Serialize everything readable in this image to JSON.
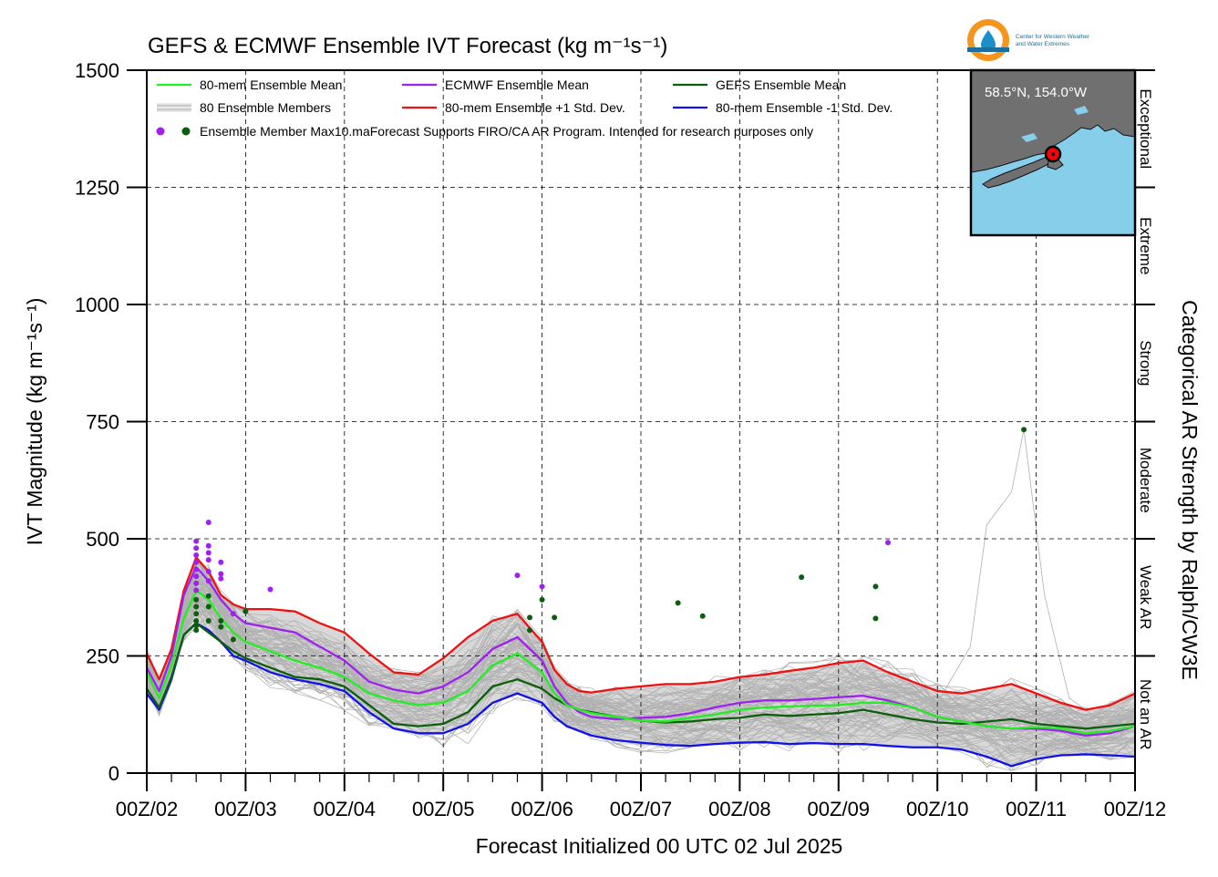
{
  "chart_data": {
    "type": "line",
    "title": "GEFS & ECMWF Ensemble IVT Forecast (kg m⁻¹s⁻¹)",
    "xlabel": "Forecast Initialized 00 UTC 02 Jul 2025",
    "ylabel": "IVT Magnitude (kg m⁻¹s⁻¹)",
    "right_label": "Categorical AR Strength by Ralph/CW3E",
    "xlim": [
      0,
      240
    ],
    "ylim": [
      0,
      1500
    ],
    "grid": true,
    "legend_placement": "top-left",
    "x_tick_values": [
      0,
      24,
      48,
      72,
      96,
      120,
      144,
      168,
      192,
      216,
      240
    ],
    "x_tick_labels": [
      "00Z/02",
      "00Z/03",
      "00Z/04",
      "00Z/05",
      "00Z/06",
      "00Z/07",
      "00Z/08",
      "00Z/09",
      "00Z/10",
      "00Z/11",
      "00Z/12"
    ],
    "y_ticks": [
      0,
      250,
      500,
      750,
      1000,
      1250,
      1500
    ],
    "categories": [
      {
        "name": "Not an AR",
        "range": [
          0,
          250
        ]
      },
      {
        "name": "Weak AR",
        "range": [
          250,
          500
        ]
      },
      {
        "name": "Moderate",
        "range": [
          500,
          750
        ]
      },
      {
        "name": "Strong",
        "range": [
          750,
          1000
        ]
      },
      {
        "name": "Extreme",
        "range": [
          1000,
          1250
        ]
      },
      {
        "name": "Exceptional",
        "range": [
          1250,
          1500
        ]
      }
    ],
    "legend": [
      {
        "label": "80-mem Ensemble Mean",
        "color": "#22ee22",
        "kind": "line"
      },
      {
        "label": "ECMWF Ensemble Mean",
        "color": "#a020f0",
        "kind": "line"
      },
      {
        "label": "GEFS Ensemble Mean",
        "color": "#0b5e0b",
        "kind": "line"
      },
      {
        "label": "80 Ensemble Members",
        "color": "#aaaaaa",
        "kind": "lines"
      },
      {
        "label": "80-mem Ensemble +1 Std. Dev.",
        "color": "#ee1111",
        "kind": "line"
      },
      {
        "label": "80-mem Ensemble -1 Std. Dev.",
        "color": "#1111ee",
        "kind": "line"
      },
      {
        "label": "Ensemble Member Max10.maForecast Supports FIRO/CA AR Program. Intended for research purposes only",
        "color": "#a020f0",
        "color2": "#0b5e0b",
        "kind": "dots"
      }
    ],
    "x": [
      0,
      3,
      6,
      9,
      12,
      15,
      18,
      21,
      24,
      30,
      36,
      42,
      48,
      54,
      60,
      66,
      72,
      78,
      84,
      90,
      96,
      99,
      102,
      105,
      108,
      114,
      120,
      126,
      132,
      138,
      144,
      150,
      156,
      162,
      168,
      174,
      180,
      186,
      192,
      198,
      204,
      210,
      216,
      222,
      228,
      234,
      240
    ],
    "series": [
      {
        "name": "80-mem Ensemble Mean",
        "color": "#22ee22",
        "values": [
          215,
          160,
          230,
          330,
          390,
          370,
          330,
          300,
          280,
          260,
          240,
          225,
          205,
          170,
          155,
          145,
          150,
          175,
          230,
          255,
          215,
          170,
          145,
          135,
          128,
          120,
          112,
          110,
          118,
          125,
          135,
          140,
          142,
          144,
          145,
          150,
          150,
          140,
          120,
          110,
          100,
          95,
          98,
          95,
          85,
          90,
          100
        ]
      },
      {
        "name": "ECMWF Ensemble Mean",
        "color": "#a020f0",
        "values": [
          225,
          175,
          250,
          380,
          440,
          410,
          370,
          340,
          320,
          310,
          300,
          270,
          240,
          195,
          178,
          170,
          185,
          215,
          265,
          290,
          240,
          185,
          150,
          130,
          120,
          115,
          118,
          120,
          128,
          140,
          150,
          155,
          155,
          158,
          162,
          165,
          155,
          140,
          120,
          110,
          100,
          95,
          95,
          90,
          80,
          85,
          100
        ]
      },
      {
        "name": "GEFS Ensemble Mean",
        "color": "#0b5e0b",
        "values": [
          180,
          140,
          205,
          295,
          320,
          300,
          280,
          260,
          245,
          225,
          205,
          200,
          185,
          145,
          105,
          100,
          105,
          130,
          185,
          200,
          180,
          160,
          145,
          135,
          130,
          120,
          112,
          108,
          110,
          115,
          118,
          125,
          122,
          125,
          128,
          135,
          125,
          115,
          108,
          105,
          110,
          115,
          105,
          100,
          95,
          100,
          105
        ]
      },
      {
        "name": "80-mem Ensemble +1 Std. Dev.",
        "color": "#ee1111",
        "values": [
          255,
          200,
          265,
          390,
          460,
          430,
          380,
          360,
          350,
          350,
          345,
          320,
          300,
          255,
          215,
          210,
          245,
          290,
          325,
          340,
          280,
          220,
          190,
          175,
          172,
          180,
          185,
          190,
          190,
          195,
          205,
          210,
          218,
          225,
          235,
          240,
          215,
          195,
          175,
          170,
          180,
          190,
          170,
          150,
          135,
          145,
          170
        ]
      },
      {
        "name": "80-mem Ensemble -1 Std. Dev.",
        "color": "#1111ee",
        "values": [
          170,
          135,
          200,
          295,
          320,
          305,
          280,
          250,
          240,
          215,
          200,
          190,
          175,
          130,
          95,
          85,
          85,
          105,
          150,
          170,
          150,
          120,
          100,
          90,
          80,
          70,
          65,
          60,
          58,
          62,
          65,
          66,
          62,
          64,
          62,
          62,
          58,
          55,
          55,
          50,
          35,
          15,
          30,
          38,
          40,
          38,
          35
        ]
      }
    ],
    "max_points_ecmwf": [
      {
        "x": 12,
        "y": 495
      },
      {
        "x": 12,
        "y": 480
      },
      {
        "x": 12,
        "y": 465
      },
      {
        "x": 12,
        "y": 450
      },
      {
        "x": 12,
        "y": 435
      },
      {
        "x": 12,
        "y": 420
      },
      {
        "x": 12,
        "y": 405
      },
      {
        "x": 12,
        "y": 390
      },
      {
        "x": 15,
        "y": 535
      },
      {
        "x": 15,
        "y": 485
      },
      {
        "x": 15,
        "y": 470
      },
      {
        "x": 15,
        "y": 455
      },
      {
        "x": 15,
        "y": 430
      },
      {
        "x": 15,
        "y": 410
      },
      {
        "x": 18,
        "y": 450
      },
      {
        "x": 18,
        "y": 425
      },
      {
        "x": 18,
        "y": 415
      },
      {
        "x": 21,
        "y": 340
      },
      {
        "x": 30,
        "y": 392
      },
      {
        "x": 90,
        "y": 422
      },
      {
        "x": 96,
        "y": 398
      },
      {
        "x": 180,
        "y": 492
      }
    ],
    "max_points_gefs": [
      {
        "x": 12,
        "y": 370
      },
      {
        "x": 12,
        "y": 355
      },
      {
        "x": 12,
        "y": 340
      },
      {
        "x": 12,
        "y": 325
      },
      {
        "x": 12,
        "y": 315
      },
      {
        "x": 12,
        "y": 305
      },
      {
        "x": 15,
        "y": 378
      },
      {
        "x": 15,
        "y": 355
      },
      {
        "x": 15,
        "y": 325
      },
      {
        "x": 18,
        "y": 325
      },
      {
        "x": 18,
        "y": 312
      },
      {
        "x": 21,
        "y": 285
      },
      {
        "x": 24,
        "y": 345
      },
      {
        "x": 93,
        "y": 332
      },
      {
        "x": 93,
        "y": 305
      },
      {
        "x": 96,
        "y": 370
      },
      {
        "x": 99,
        "y": 332
      },
      {
        "x": 129,
        "y": 363
      },
      {
        "x": 135,
        "y": 335
      },
      {
        "x": 159,
        "y": 418
      },
      {
        "x": 177,
        "y": 398
      },
      {
        "x": 177,
        "y": 330
      },
      {
        "x": 213,
        "y": 733
      }
    ]
  },
  "inset": {
    "location_label": "58.5°N, 154.0°W",
    "marker_color": "#ff0000",
    "ocean_color": "#87ceeb",
    "land_color": "#707070"
  },
  "logo": {
    "line1": "Center for Western Weather",
    "line2": "and Water Extremes"
  },
  "colors": {
    "members": "#b0b0b0",
    "spread_fill": "#d8d8d8"
  }
}
